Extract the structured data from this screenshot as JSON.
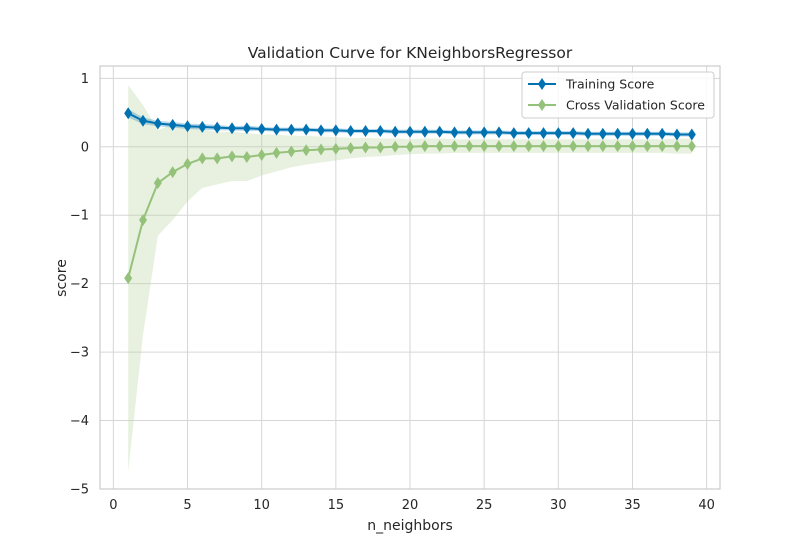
{
  "chart_data": {
    "type": "line",
    "title": "Validation Curve for KNeighborsRegressor",
    "xlabel": "n_neighbors",
    "ylabel": "score",
    "xlim": [
      -0.9,
      40.9
    ],
    "ylim": [
      -5.0,
      1.18
    ],
    "xticks": [
      0,
      5,
      10,
      15,
      20,
      25,
      30,
      35,
      40
    ],
    "xtick_labels": [
      "0",
      "5",
      "10",
      "15",
      "20",
      "25",
      "30",
      "35",
      "40"
    ],
    "yticks": [
      1,
      0,
      -1,
      -2,
      -3,
      -4,
      -5
    ],
    "ytick_labels": [
      "1",
      "0",
      "−1",
      "−2",
      "−3",
      "−4",
      "−5"
    ],
    "grid": true,
    "legend_position": "top-right",
    "x": [
      1,
      2,
      3,
      4,
      5,
      6,
      7,
      8,
      9,
      10,
      11,
      12,
      13,
      14,
      15,
      16,
      17,
      18,
      19,
      20,
      21,
      22,
      23,
      24,
      25,
      26,
      27,
      28,
      29,
      30,
      31,
      32,
      33,
      34,
      35,
      36,
      37,
      38,
      39
    ],
    "series": [
      {
        "name": "Training Score",
        "color": "#0072B2",
        "band_color": "#0072B2",
        "values": [
          0.49,
          0.38,
          0.34,
          0.32,
          0.3,
          0.29,
          0.28,
          0.27,
          0.27,
          0.26,
          0.25,
          0.25,
          0.25,
          0.24,
          0.24,
          0.23,
          0.23,
          0.23,
          0.22,
          0.22,
          0.22,
          0.22,
          0.21,
          0.21,
          0.21,
          0.21,
          0.2,
          0.2,
          0.2,
          0.2,
          0.2,
          0.19,
          0.19,
          0.19,
          0.19,
          0.19,
          0.19,
          0.18,
          0.18
        ],
        "lower": [
          0.43,
          0.33,
          0.3,
          0.28,
          0.26,
          0.25,
          0.24,
          0.24,
          0.23,
          0.23,
          0.22,
          0.22,
          0.22,
          0.21,
          0.21,
          0.2,
          0.2,
          0.2,
          0.19,
          0.19,
          0.19,
          0.19,
          0.18,
          0.18,
          0.18,
          0.18,
          0.17,
          0.17,
          0.17,
          0.17,
          0.17,
          0.16,
          0.16,
          0.16,
          0.16,
          0.16,
          0.16,
          0.15,
          0.15
        ],
        "upper": [
          0.55,
          0.43,
          0.38,
          0.36,
          0.34,
          0.33,
          0.32,
          0.3,
          0.31,
          0.29,
          0.28,
          0.28,
          0.28,
          0.27,
          0.27,
          0.26,
          0.26,
          0.26,
          0.25,
          0.25,
          0.25,
          0.25,
          0.24,
          0.24,
          0.24,
          0.24,
          0.23,
          0.23,
          0.23,
          0.23,
          0.23,
          0.22,
          0.22,
          0.22,
          0.22,
          0.22,
          0.22,
          0.21,
          0.21
        ]
      },
      {
        "name": "Cross Validation Score",
        "color": "#95c27a",
        "band_color": "#b7d49a",
        "values": [
          -1.92,
          -1.07,
          -0.53,
          -0.37,
          -0.25,
          -0.17,
          -0.17,
          -0.14,
          -0.15,
          -0.12,
          -0.09,
          -0.07,
          -0.05,
          -0.04,
          -0.03,
          -0.02,
          -0.01,
          -0.01,
          0.0,
          0.0,
          0.01,
          0.01,
          0.01,
          0.01,
          0.01,
          0.01,
          0.01,
          0.01,
          0.01,
          0.01,
          0.01,
          0.01,
          0.01,
          0.01,
          0.01,
          0.01,
          0.01,
          0.01,
          0.01
        ],
        "lower": [
          -4.75,
          -2.75,
          -1.3,
          -1.07,
          -0.8,
          -0.6,
          -0.55,
          -0.5,
          -0.5,
          -0.42,
          -0.36,
          -0.3,
          -0.26,
          -0.23,
          -0.2,
          -0.17,
          -0.15,
          -0.14,
          -0.12,
          -0.11,
          -0.1,
          -0.1,
          -0.09,
          -0.09,
          -0.09,
          -0.09,
          -0.09,
          -0.09,
          -0.09,
          -0.09,
          -0.09,
          -0.09,
          -0.09,
          -0.09,
          -0.09,
          -0.09,
          -0.09,
          -0.1,
          -0.1
        ],
        "upper": [
          0.9,
          0.61,
          0.24,
          0.33,
          0.3,
          0.26,
          0.21,
          0.22,
          0.2,
          0.18,
          0.18,
          0.16,
          0.16,
          0.15,
          0.14,
          0.13,
          0.13,
          0.12,
          0.12,
          0.11,
          0.12,
          0.12,
          0.11,
          0.11,
          0.11,
          0.11,
          0.11,
          0.11,
          0.11,
          0.11,
          0.11,
          0.11,
          0.11,
          0.11,
          0.11,
          0.11,
          0.11,
          0.12,
          0.12
        ]
      }
    ]
  }
}
